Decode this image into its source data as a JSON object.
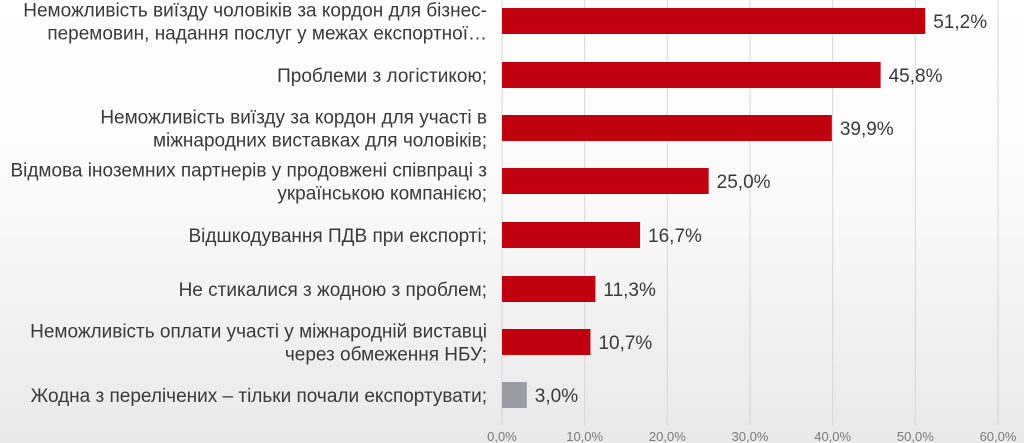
{
  "chart_data": {
    "type": "bar",
    "orientation": "horizontal",
    "categories": [
      [
        "Неможливість виїзду чоловіків за кордон для бізнес-",
        "перемовин, надання послуг у межах експортної…"
      ],
      [
        "Проблеми з логістикою;"
      ],
      [
        "Неможливість виїзду за кордон для участі в",
        "міжнародних виставках для чоловіків;"
      ],
      [
        "Відмова іноземних партнерів у продовжені співпраці з",
        "українською компанією;"
      ],
      [
        "Відшкодування ПДВ при експорті;"
      ],
      [
        "Не стикалися з жодною з проблем;"
      ],
      [
        "Неможливість оплати участі у міжнародній виставці",
        "через обмеження НБУ;"
      ],
      [
        "Жодна з перелічених – тільки почали експортувати;"
      ]
    ],
    "values": [
      51.2,
      45.8,
      39.9,
      25.0,
      16.7,
      11.3,
      10.7,
      3.0
    ],
    "value_labels": [
      "51,2%",
      "45,8%",
      "39,9%",
      "25,0%",
      "16,7%",
      "11,3%",
      "10,7%",
      "3,0%"
    ],
    "xlim": [
      0,
      60
    ],
    "x_ticks": [
      0,
      10,
      20,
      30,
      40,
      50,
      60
    ],
    "x_tick_labels": [
      "0,0%",
      "10,0%",
      "20,0%",
      "30,0%",
      "40,0%",
      "50,0%",
      "60,0%"
    ],
    "grid": true,
    "colors": {
      "bar": "#c0000f",
      "bar_last": "#9a9da3",
      "text": "#3a3a3a",
      "grid": "#d6d6d6"
    }
  }
}
